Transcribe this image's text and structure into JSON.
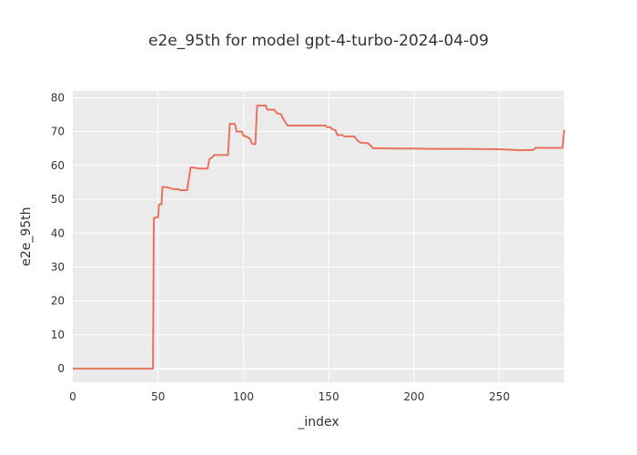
{
  "chart_data": {
    "type": "line",
    "title": "e2e_95th for model gpt-4-turbo-2024-04-09",
    "xlabel": "_index",
    "ylabel": "e2e_95th",
    "xlim": [
      0,
      288
    ],
    "ylim": [
      -4,
      82
    ],
    "x_ticks": [
      0,
      50,
      100,
      150,
      200,
      250
    ],
    "y_ticks": [
      0,
      10,
      20,
      30,
      40,
      50,
      60,
      70,
      80
    ],
    "grid": true,
    "legend": "none",
    "colors": {
      "plot_background": "#ebebeb",
      "grid": "#ffffff",
      "line": "#e8725f"
    },
    "series": [
      {
        "x": [
          0,
          47,
          47.5,
          48,
          48.5,
          50,
          50.5,
          52,
          52.5,
          55,
          58,
          59,
          62,
          63,
          67,
          68,
          69,
          70,
          72,
          74,
          79,
          80,
          82,
          83,
          91,
          92,
          95,
          96,
          99,
          100,
          102,
          104,
          105,
          106,
          107,
          108,
          113,
          114,
          118,
          120,
          122,
          123,
          124,
          125,
          126,
          148,
          149,
          151,
          152,
          154,
          155,
          158,
          159,
          165,
          167,
          169,
          171,
          173,
          176,
          178,
          190,
          200,
          210,
          230,
          250,
          255,
          262,
          270,
          271,
          286,
          287,
          288
        ],
        "y": [
          0,
          0,
          44.5,
          44.5,
          44.7,
          44.7,
          48.5,
          48.5,
          53.6,
          53.6,
          53.2,
          53,
          53,
          52.7,
          52.7,
          56,
          59.4,
          59.4,
          59.3,
          59.1,
          59.1,
          61.8,
          62.6,
          63.1,
          63.1,
          72.3,
          72.3,
          70,
          70,
          68.8,
          68.5,
          67.8,
          66.4,
          66.3,
          66.3,
          77.7,
          77.7,
          76.5,
          76.5,
          75.3,
          75.2,
          74.1,
          73.3,
          72.4,
          71.8,
          71.8,
          71.3,
          71.3,
          70.7,
          70.4,
          69,
          69,
          68.6,
          68.6,
          67.3,
          66.7,
          66.6,
          66.6,
          65.1,
          65.1,
          65,
          65,
          64.9,
          64.9,
          64.8,
          64.7,
          64.5,
          64.6,
          65.2,
          65.2,
          65.2,
          70.5
        ]
      }
    ]
  }
}
